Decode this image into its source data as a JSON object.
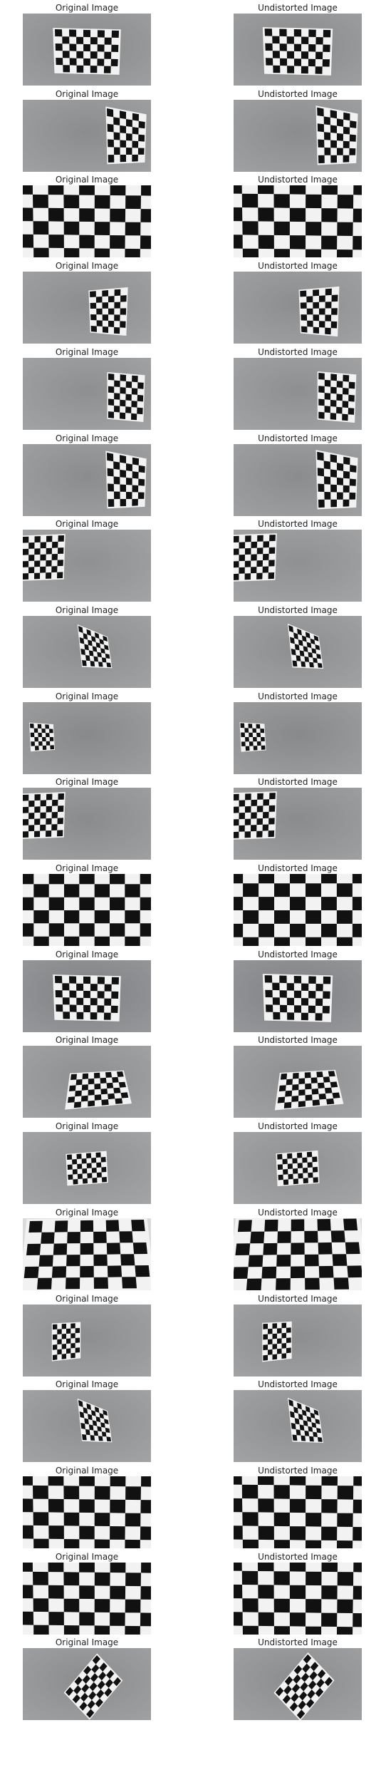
{
  "titles": {
    "left": "Original Image",
    "right": "Undistorted Image"
  },
  "colors": {
    "background": "#ffffff",
    "board_dark": "#111111",
    "board_light": "#f2f2f2"
  },
  "rows": [
    {
      "scene": "board-center",
      "wall": "#888a8c"
    },
    {
      "scene": "board-right-edge",
      "wall": "#8a8c8e"
    },
    {
      "scene": "board-closeup",
      "wall": "#d8d6d0"
    },
    {
      "scene": "board-right",
      "wall": "#8b8d8f"
    },
    {
      "scene": "board-right-edge",
      "wall": "#8d8f91"
    },
    {
      "scene": "board-right-edge",
      "wall": "#8a8c8e"
    },
    {
      "scene": "board-left-edge",
      "wall": "#8e9092"
    },
    {
      "scene": "board-right-tilted",
      "wall": "#8c8e90"
    },
    {
      "scene": "board-left-small",
      "wall": "#87898b"
    },
    {
      "scene": "board-left-edge",
      "wall": "#898b8d"
    },
    {
      "scene": "board-fullframe",
      "wall": "#e6e6e6"
    },
    {
      "scene": "board-center",
      "wall": "#7f8184"
    },
    {
      "scene": "board-center-tilted",
      "wall": "#8d8f91"
    },
    {
      "scene": "board-center-small",
      "wall": "#8f9193"
    },
    {
      "scene": "board-perspective",
      "wall": "#d4d4d4"
    },
    {
      "scene": "board-small-left",
      "wall": "#8c8e90"
    },
    {
      "scene": "board-right-tilted",
      "wall": "#8d8f91"
    },
    {
      "scene": "board-closeup",
      "wall": "#c8c8c8"
    },
    {
      "scene": "board-closeup",
      "wall": "#d2d0c8"
    },
    {
      "scene": "board-rotated",
      "wall": "#8a8c8e"
    }
  ]
}
